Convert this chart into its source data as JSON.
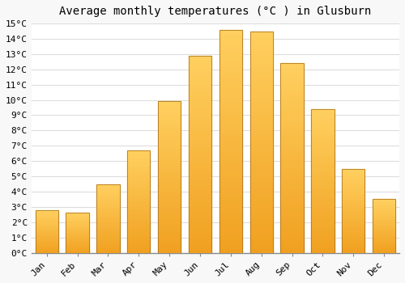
{
  "title": "Average monthly temperatures (°C ) in Glusburn",
  "months": [
    "Jan",
    "Feb",
    "Mar",
    "Apr",
    "May",
    "Jun",
    "Jul",
    "Aug",
    "Sep",
    "Oct",
    "Nov",
    "Dec"
  ],
  "values": [
    2.8,
    2.6,
    4.5,
    6.7,
    9.9,
    12.9,
    14.6,
    14.5,
    12.4,
    9.4,
    5.5,
    3.5
  ],
  "bar_color_bottom": "#F0A020",
  "bar_color_top": "#FFD060",
  "bar_edge_color": "#B07820",
  "ylim": [
    0,
    15
  ],
  "yticks": [
    0,
    1,
    2,
    3,
    4,
    5,
    6,
    7,
    8,
    9,
    10,
    11,
    12,
    13,
    14,
    15
  ],
  "background_color": "#f8f8f8",
  "plot_bg_color": "#ffffff",
  "grid_color": "#dddddd",
  "title_fontsize": 10,
  "tick_fontsize": 8,
  "bar_width": 0.75
}
